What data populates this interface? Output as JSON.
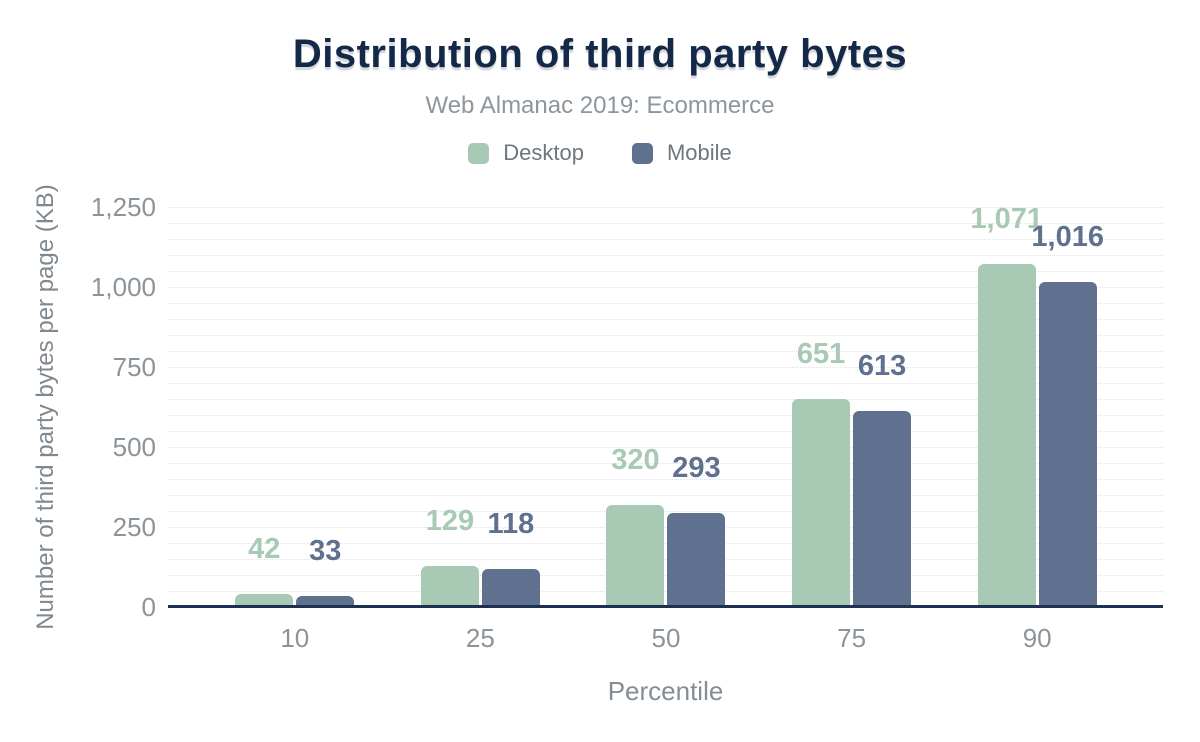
{
  "chart_data": {
    "type": "bar",
    "title": "Distribution of third party bytes",
    "subtitle": "Web Almanac 2019: Ecommerce",
    "xlabel": "Percentile",
    "ylabel": "Number of third party bytes per page (KB)",
    "categories": [
      "10",
      "25",
      "50",
      "75",
      "90"
    ],
    "series": [
      {
        "name": "Desktop",
        "color": "#a8c9b4",
        "values": [
          42,
          129,
          320,
          651,
          1071
        ],
        "labels": [
          "42",
          "129",
          "320",
          "651",
          "1,071"
        ]
      },
      {
        "name": "Mobile",
        "color": "#60708f",
        "values": [
          33,
          118,
          293,
          613,
          1016
        ],
        "labels": [
          "33",
          "118",
          "293",
          "613",
          "1,016"
        ]
      }
    ],
    "ylim": [
      0,
      1250
    ],
    "yticks": [
      0,
      250,
      500,
      750,
      1000,
      1250
    ],
    "ytick_labels": [
      "0",
      "250",
      "500",
      "750",
      "1,000",
      "1,250"
    ],
    "minor_grid_step": 50,
    "grid": "dotted-horizontal",
    "legend_position": "top-center"
  },
  "colors": {
    "title_text": "#142848",
    "subtitle_text": "#8e969c",
    "legend_text": "#6e777e",
    "axis_tick_text": "#8c949b",
    "axis_title_text": "#7f888f",
    "gridline": "#dfe3e7",
    "baseline": "#1d3252",
    "background": "#ffffff",
    "desktop_accent": "#a8c9b4",
    "mobile_accent": "#60708f"
  }
}
